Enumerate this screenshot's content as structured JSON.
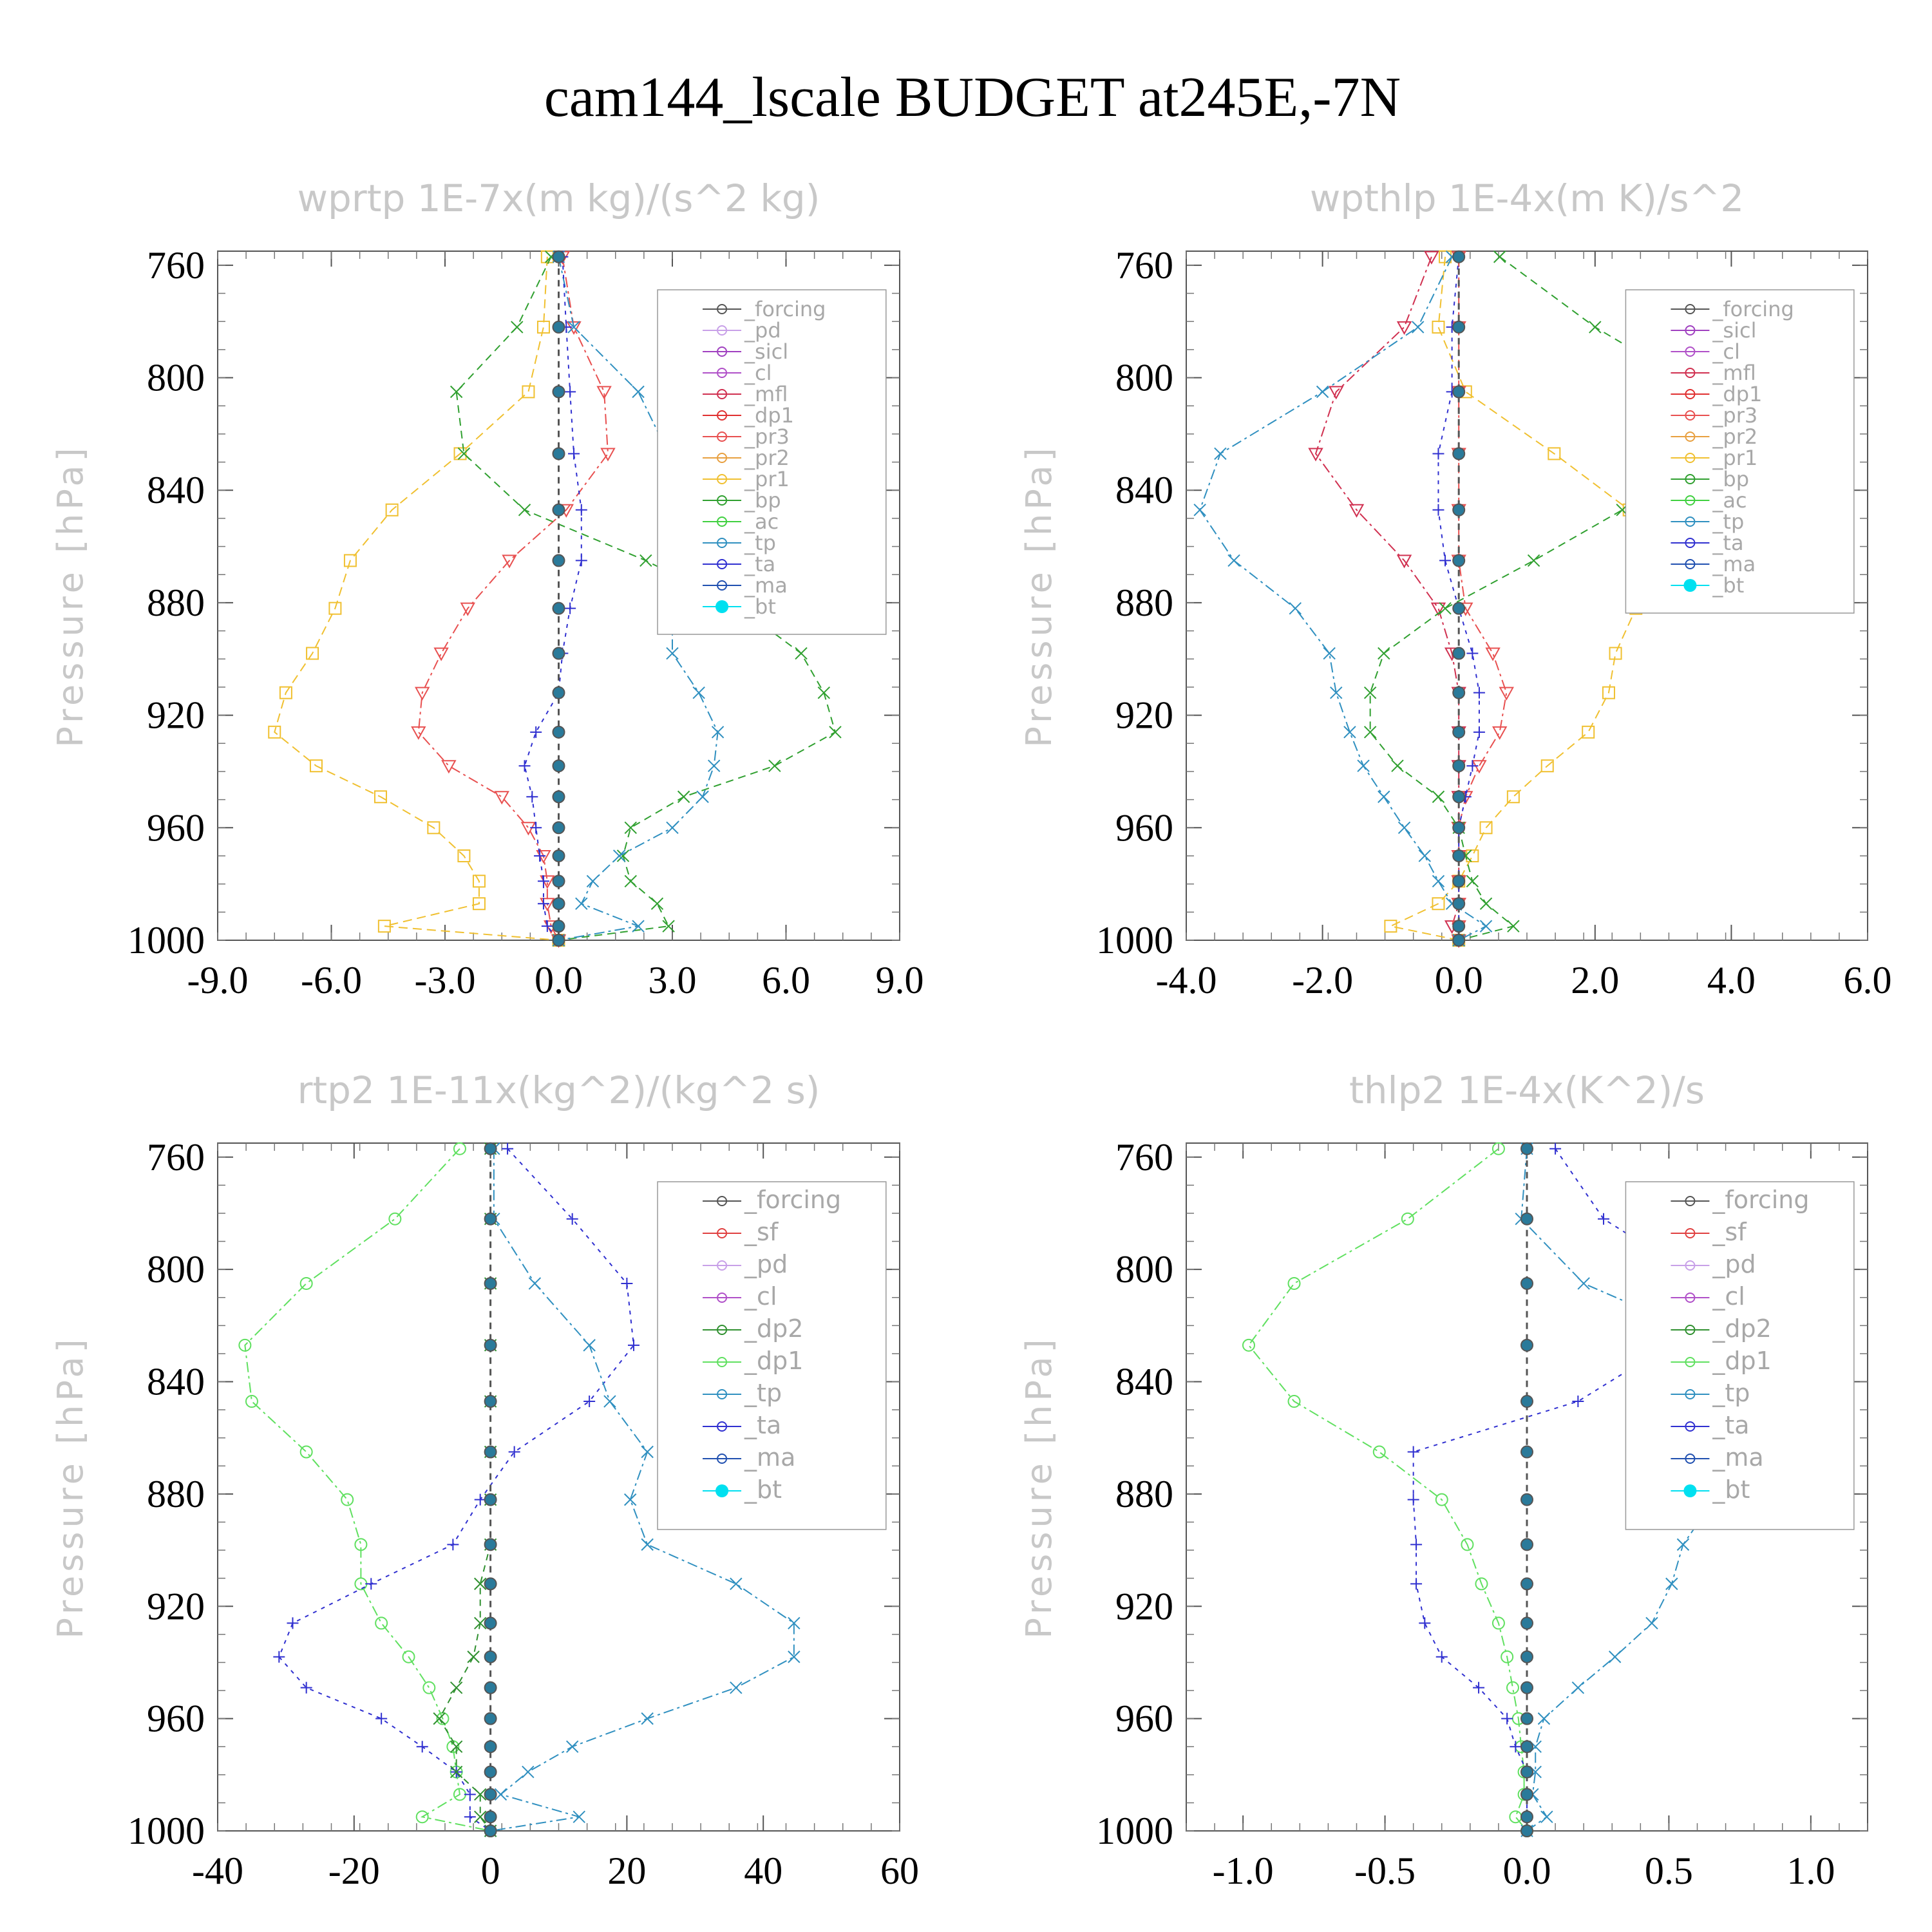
{
  "title": "cam144_lscale  BUDGET at245E,-7N",
  "colors": {
    "forcing": "#555555",
    "pd": "#c8a0e8",
    "sicl": "#a040c0",
    "cl": "#b050c8",
    "mfl": "#d03050",
    "dp1": "#e03030",
    "pr3": "#e85050",
    "pr2": "#e8a040",
    "pr1": "#f0c030",
    "bp": "#30a030",
    "ac": "#40d040",
    "tp": "#3090c0",
    "ta": "#3030d0",
    "ma": "#2050b0",
    "bt": "#00e0f0",
    "sf": "#e04040",
    "dp2": "#309030",
    "dp1_var": "#60e060"
  },
  "chart_data": [
    {
      "type": "line",
      "title": "wprtp  1E-7x(m kg)/(s^2 kg)",
      "ylabel": "Pressure [hPa]",
      "xlim": [
        -9,
        9
      ],
      "ylim": [
        1000,
        755
      ],
      "xticks": [
        "-9.0",
        "-6.0",
        "-3.0",
        "0.0",
        "3.0",
        "6.0",
        "9.0"
      ],
      "yticks": [
        "760",
        "800",
        "840",
        "880",
        "920",
        "960",
        "1000"
      ],
      "legend": [
        "_forcing",
        "_pd",
        "_sicl",
        "_cl",
        "_mfl",
        "_dp1",
        "_pr3",
        "_pr2",
        "_pr1",
        "_bp",
        "_ac",
        "_tp",
        "_ta",
        "_ma",
        "_bt"
      ],
      "pressure": [
        757,
        782,
        805,
        827,
        847,
        865,
        882,
        898,
        912,
        926,
        938,
        949,
        960,
        970,
        979,
        987,
        995,
        1000
      ],
      "series": [
        {
          "key": "pr1",
          "values": [
            -0.3,
            -0.4,
            -0.8,
            -2.6,
            -4.4,
            -5.5,
            -5.9,
            -6.5,
            -7.2,
            -7.5,
            -6.4,
            -4.7,
            -3.3,
            -2.5,
            -2.1,
            -2.1,
            -4.6,
            0.0
          ]
        },
        {
          "key": "pr3",
          "values": [
            0.1,
            0.4,
            1.2,
            1.3,
            0.2,
            -1.3,
            -2.4,
            -3.1,
            -3.6,
            -3.7,
            -2.9,
            -1.5,
            -0.8,
            -0.4,
            -0.3,
            -0.3,
            -0.2,
            0.0
          ]
        },
        {
          "key": "bp",
          "values": [
            -0.2,
            -1.1,
            -2.7,
            -2.5,
            -0.9,
            2.3,
            4.8,
            6.4,
            7.0,
            7.3,
            5.7,
            3.3,
            1.9,
            1.7,
            1.9,
            2.6,
            2.9,
            0.0
          ]
        },
        {
          "key": "tp",
          "values": [
            0.0,
            0.4,
            2.1,
            2.9,
            3.8,
            3.2,
            3.0,
            3.0,
            3.7,
            4.2,
            4.1,
            3.8,
            3.0,
            1.6,
            0.9,
            0.6,
            2.1,
            0.0
          ]
        },
        {
          "key": "ta",
          "values": [
            0.1,
            0.2,
            0.3,
            0.4,
            0.6,
            0.6,
            0.3,
            0.1,
            0.0,
            -0.6,
            -0.9,
            -0.7,
            -0.6,
            -0.5,
            -0.4,
            -0.4,
            -0.3,
            0.0
          ]
        },
        {
          "key": "forcing",
          "values": [
            0,
            0,
            0,
            0,
            0,
            0,
            0,
            0,
            0,
            0,
            0,
            0,
            0,
            0,
            0,
            0,
            0,
            0
          ]
        }
      ]
    },
    {
      "type": "line",
      "title": "wpthlp  1E-4x(m K)/s^2",
      "ylabel": "Pressure [hPa]",
      "xlim": [
        -4,
        6
      ],
      "ylim": [
        1000,
        755
      ],
      "xticks": [
        "-4.0",
        "-2.0",
        "0.0",
        "2.0",
        "4.0",
        "6.0"
      ],
      "yticks": [
        "760",
        "800",
        "840",
        "880",
        "920",
        "960",
        "1000"
      ],
      "legend": [
        "_forcing",
        "_sicl",
        "_cl",
        "_mfl",
        "_dp1",
        "_pr3",
        "_pr2",
        "_pr1",
        "_bp",
        "_ac",
        "_tp",
        "_ta",
        "_ma",
        "_bt"
      ],
      "pressure": [
        757,
        782,
        805,
        827,
        847,
        865,
        882,
        898,
        912,
        926,
        938,
        949,
        960,
        970,
        979,
        987,
        995,
        1000
      ],
      "series": [
        {
          "key": "pr1",
          "values": [
            -0.2,
            -0.3,
            0.1,
            1.4,
            2.5,
            2.7,
            2.6,
            2.3,
            2.2,
            1.9,
            1.3,
            0.8,
            0.4,
            0.2,
            0.0,
            -0.3,
            -1.0,
            0.0
          ]
        },
        {
          "key": "mfl",
          "values": [
            -0.4,
            -0.8,
            -1.8,
            -2.1,
            -1.5,
            -0.8,
            -0.3,
            -0.1,
            0.0,
            0.0,
            0.0,
            0.0,
            0.0,
            0.0,
            0.0,
            0.0,
            -0.1,
            0.0
          ]
        },
        {
          "key": "pr3",
          "values": [
            0.0,
            0.0,
            0.0,
            0.0,
            0.0,
            0.0,
            0.1,
            0.5,
            0.7,
            0.6,
            0.3,
            0.1,
            0.0,
            0.0,
            0.0,
            0.0,
            0.0,
            0.0
          ]
        },
        {
          "key": "bp",
          "values": [
            0.6,
            2.0,
            3.6,
            4.4,
            2.4,
            1.1,
            -0.2,
            -1.1,
            -1.3,
            -1.3,
            -0.9,
            -0.3,
            0.0,
            0.1,
            0.2,
            0.4,
            0.8,
            0.0
          ]
        },
        {
          "key": "tp",
          "values": [
            -0.1,
            -0.6,
            -2.0,
            -3.5,
            -3.8,
            -3.3,
            -2.4,
            -1.9,
            -1.8,
            -1.6,
            -1.4,
            -1.1,
            -0.8,
            -0.5,
            -0.3,
            -0.1,
            0.4,
            0.0
          ]
        },
        {
          "key": "ta",
          "values": [
            0.0,
            -0.1,
            -0.1,
            -0.3,
            -0.3,
            -0.2,
            0.0,
            0.2,
            0.3,
            0.3,
            0.2,
            0.1,
            0.0,
            0.0,
            0.0,
            0.0,
            0.0,
            0.0
          ]
        },
        {
          "key": "forcing",
          "values": [
            0,
            0,
            0,
            0,
            0,
            0,
            0,
            0,
            0,
            0,
            0,
            0,
            0,
            0,
            0,
            0,
            0,
            0
          ]
        }
      ]
    },
    {
      "type": "line",
      "title": "rtp2  1E-11x(kg^2)/(kg^2 s)",
      "ylabel": "Pressure [hPa]",
      "xlim": [
        -40,
        60
      ],
      "ylim": [
        1000,
        755
      ],
      "xticks": [
        "-40",
        "-20",
        "0",
        "20",
        "40",
        "60"
      ],
      "yticks": [
        "760",
        "800",
        "840",
        "880",
        "920",
        "960",
        "1000"
      ],
      "legend": [
        "_forcing",
        "_sf",
        "_pd",
        "_cl",
        "_dp2",
        "_dp1",
        "_tp",
        "_ta",
        "_ma",
        "_bt"
      ],
      "pressure": [
        757,
        782,
        805,
        827,
        847,
        865,
        882,
        898,
        912,
        926,
        938,
        949,
        960,
        970,
        979,
        987,
        995,
        1000
      ],
      "series": [
        {
          "key": "dp1_var",
          "values": [
            -4.5,
            -14,
            -27,
            -36,
            -35,
            -27,
            -21,
            -19,
            -19,
            -16,
            -12,
            -9,
            -7,
            -5.5,
            -5,
            -4.5,
            -10,
            0
          ]
        },
        {
          "key": "ta",
          "values": [
            2.5,
            12,
            20,
            21,
            14.5,
            3.5,
            -1.5,
            -5.5,
            -17.5,
            -29,
            -31,
            -27,
            -16,
            -10,
            -5,
            -3,
            -3,
            0
          ]
        },
        {
          "key": "tp",
          "values": [
            0.5,
            0.5,
            6.5,
            14.5,
            17.5,
            23,
            20.5,
            23,
            36,
            44.5,
            44.5,
            36,
            23,
            12,
            5.5,
            1.5,
            13,
            0
          ]
        },
        {
          "key": "dp2",
          "values": [
            0,
            0,
            0,
            0,
            0,
            0,
            0,
            0,
            -1.5,
            -1.5,
            -2.5,
            -5,
            -7.5,
            -5,
            -5,
            -1.5,
            -1.5,
            0
          ]
        },
        {
          "key": "forcing",
          "values": [
            0,
            0,
            0,
            0,
            0,
            0,
            0,
            0,
            0,
            0,
            0,
            0,
            0,
            0,
            0,
            0,
            0,
            0
          ]
        }
      ]
    },
    {
      "type": "line",
      "title": "thlp2  1E-4x(K^2)/s",
      "ylabel": "Pressure [hPa]",
      "xlim": [
        -1.2,
        1.2
      ],
      "ylim": [
        1000,
        755
      ],
      "xticks": [
        "-1.0",
        "-0.5",
        "0.0",
        "0.5",
        "1.0"
      ],
      "yticks": [
        "760",
        "800",
        "840",
        "880",
        "920",
        "960",
        "1000"
      ],
      "legend": [
        "_forcing",
        "_sf",
        "_pd",
        "_cl",
        "_dp2",
        "_dp1",
        "_tp",
        "_ta",
        "_ma",
        "_bt"
      ],
      "pressure": [
        757,
        782,
        805,
        827,
        847,
        865,
        882,
        898,
        912,
        926,
        938,
        949,
        960,
        970,
        979,
        987,
        995,
        1000
      ],
      "series": [
        {
          "key": "dp1_var",
          "values": [
            -0.1,
            -0.42,
            -0.82,
            -0.98,
            -0.82,
            -0.52,
            -0.3,
            -0.21,
            -0.16,
            -0.1,
            -0.07,
            -0.05,
            -0.03,
            -0.02,
            -0.01,
            -0.01,
            -0.04,
            0
          ]
        },
        {
          "key": "ta",
          "values": [
            0.1,
            0.27,
            0.63,
            0.5,
            0.18,
            -0.4,
            -0.4,
            -0.39,
            -0.39,
            -0.36,
            -0.3,
            -0.17,
            -0.07,
            -0.04,
            0,
            0,
            0,
            0
          ]
        },
        {
          "key": "tp",
          "values": [
            0,
            -0.02,
            0.2,
            0.7,
            0.95,
            0.93,
            0.66,
            0.55,
            0.51,
            0.44,
            0.31,
            0.18,
            0.06,
            0.03,
            0.03,
            0.02,
            0.07,
            0
          ]
        },
        {
          "key": "forcing",
          "values": [
            0,
            0,
            0,
            0,
            0,
            0,
            0,
            0,
            0,
            0,
            0,
            0,
            0,
            0,
            0,
            0,
            0,
            0
          ]
        }
      ]
    }
  ]
}
